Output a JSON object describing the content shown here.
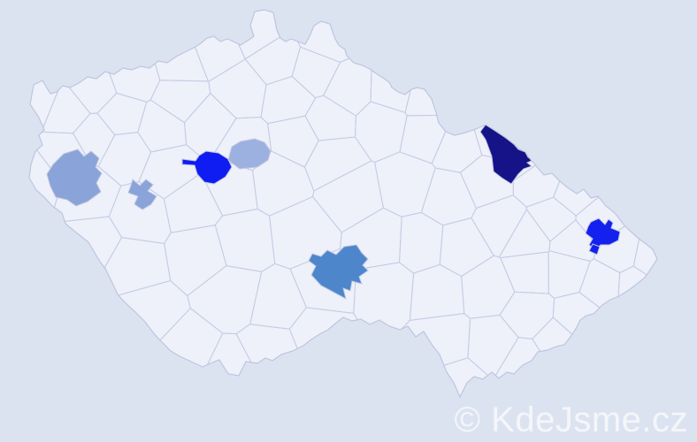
{
  "watermark": {
    "text": "© KdeJsme.cz",
    "color": "#ffffff"
  },
  "map": {
    "colors": {
      "background": "#dce3f0",
      "land": "#eef1f9",
      "district_border": "#c6cbe6",
      "country_outline": "#bdc5e1"
    },
    "highlighted_districts": [
      {
        "id": "west-large",
        "color": "#8aa3d8"
      },
      {
        "id": "west-small",
        "color": "#8aa3d8"
      },
      {
        "id": "central-bright",
        "color": "#0f1df2"
      },
      {
        "id": "central-light",
        "color": "#9db1e0"
      },
      {
        "id": "south-central-medium",
        "color": "#4e86cb"
      },
      {
        "id": "northeast-dark",
        "color": "#161389"
      },
      {
        "id": "east-bright",
        "color": "#1420ee"
      }
    ]
  }
}
